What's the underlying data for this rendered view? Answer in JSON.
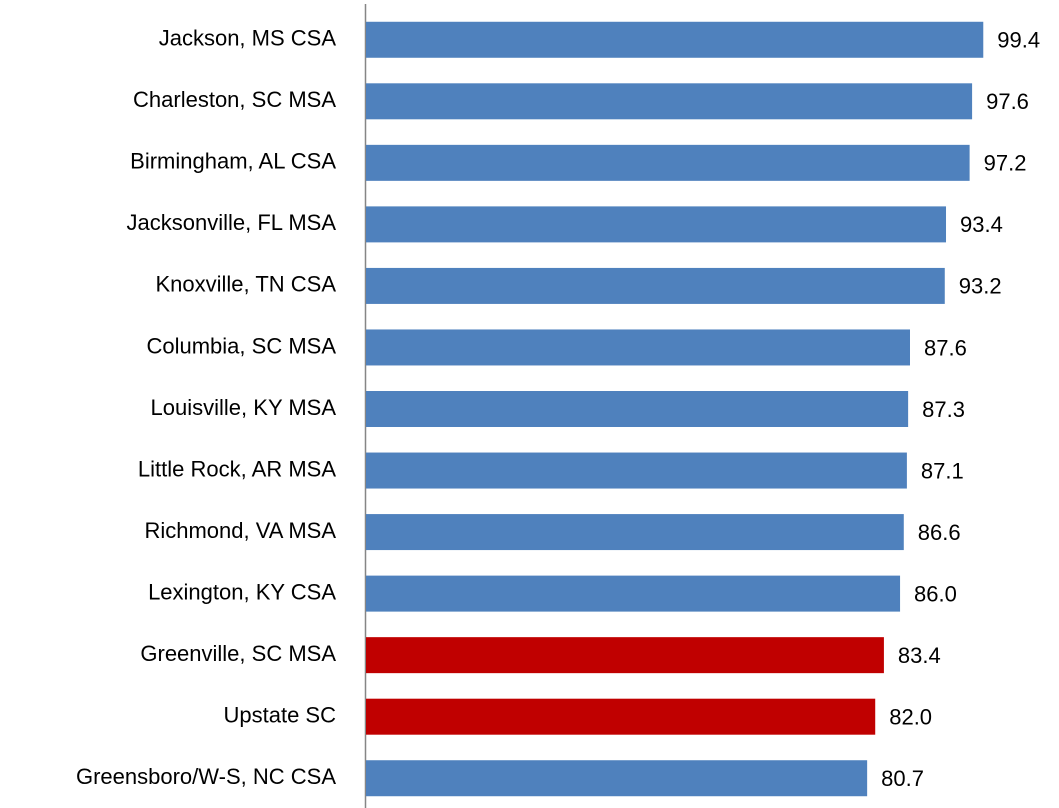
{
  "chart_data": {
    "type": "bar",
    "orientation": "horizontal",
    "categories": [
      "Jackson, MS CSA",
      "Charleston, SC MSA",
      "Birmingham, AL CSA",
      "Jacksonville, FL MSA",
      "Knoxville, TN CSA",
      "Columbia, SC MSA",
      "Louisville, KY MSA",
      "Little Rock, AR MSA",
      "Richmond, VA MSA",
      "Lexington, KY CSA",
      "Greenville, SC MSA",
      "Upstate SC",
      "Greensboro/W-S, NC CSA"
    ],
    "values": [
      99.4,
      97.6,
      97.2,
      93.4,
      93.2,
      87.6,
      87.3,
      87.1,
      86.6,
      86.0,
      83.4,
      82.0,
      80.7
    ],
    "value_labels": [
      "99.4",
      "97.6",
      "97.2",
      "93.4",
      "93.2",
      "87.6",
      "87.3",
      "87.1",
      "86.6",
      "86.0",
      "83.4",
      "82.0",
      "80.7"
    ],
    "colors": [
      "#4f81bd",
      "#4f81bd",
      "#4f81bd",
      "#4f81bd",
      "#4f81bd",
      "#4f81bd",
      "#4f81bd",
      "#4f81bd",
      "#4f81bd",
      "#4f81bd",
      "#c00000",
      "#c00000",
      "#4f81bd"
    ],
    "xlim": [
      0,
      100
    ]
  }
}
